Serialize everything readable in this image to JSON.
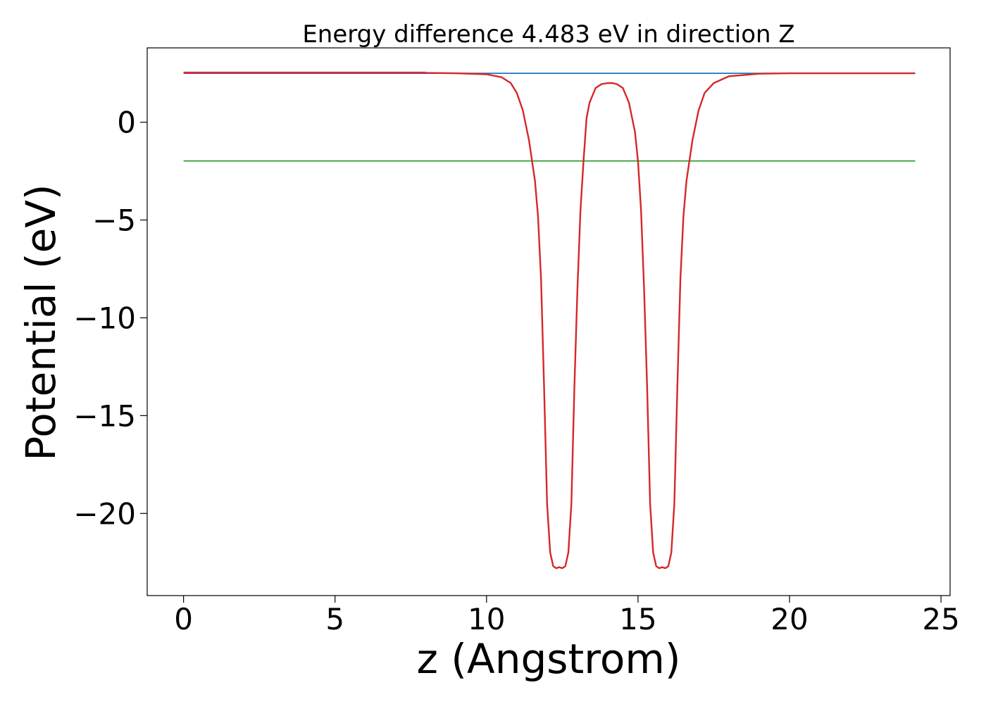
{
  "chart_data": {
    "type": "line",
    "title": "Energy difference 4.483 eV in direction Z",
    "xlabel": "z (Angstrom)",
    "ylabel": "Potential (eV)",
    "xlim": [
      -1.2,
      25.3
    ],
    "ylim": [
      -24.2,
      3.8
    ],
    "xticks": [
      0,
      5,
      10,
      15,
      20,
      25
    ],
    "yticks": [
      0,
      -5,
      -10,
      -15,
      -20
    ],
    "grid": false,
    "legend": "none",
    "series": [
      {
        "color": "#1f77b4",
        "x": [
          0,
          24.15
        ],
        "y": [
          2.5,
          2.5
        ]
      },
      {
        "color": "#2ca02c",
        "x": [
          0,
          24.15
        ],
        "y": [
          -1.98,
          -1.98
        ]
      },
      {
        "color": "#9467bd",
        "x": [
          0,
          8.0
        ],
        "y": [
          2.55,
          2.55
        ]
      },
      {
        "color": "#d62728",
        "x": [
          0,
          8.0,
          9.0,
          10.0,
          10.5,
          10.8,
          11.0,
          11.2,
          11.4,
          11.6,
          11.7,
          11.8,
          11.9,
          12.0,
          12.1,
          12.2,
          12.3,
          12.4,
          12.5,
          12.6,
          12.7,
          12.8,
          12.9,
          13.0,
          13.1,
          13.2,
          13.3,
          13.4,
          13.6,
          13.8,
          14.0,
          14.15,
          14.3,
          14.5,
          14.7,
          14.9,
          15.0,
          15.1,
          15.2,
          15.3,
          15.4,
          15.5,
          15.6,
          15.7,
          15.8,
          15.9,
          16.0,
          16.1,
          16.2,
          16.3,
          16.4,
          16.5,
          16.6,
          16.8,
          17.0,
          17.2,
          17.5,
          18.0,
          19.0,
          20.0,
          24.15
        ],
        "y": [
          2.52,
          2.52,
          2.5,
          2.45,
          2.3,
          2.0,
          1.5,
          0.6,
          -0.9,
          -3.0,
          -4.8,
          -8.0,
          -13.5,
          -19.5,
          -22.0,
          -22.7,
          -22.8,
          -22.75,
          -22.8,
          -22.7,
          -22.0,
          -19.5,
          -13.5,
          -8.5,
          -4.5,
          -2.0,
          0.2,
          1.0,
          1.75,
          1.95,
          2.0,
          2.0,
          1.95,
          1.75,
          1.0,
          -0.5,
          -2.0,
          -4.5,
          -8.5,
          -13.5,
          -19.5,
          -22.0,
          -22.7,
          -22.8,
          -22.75,
          -22.8,
          -22.7,
          -22.0,
          -19.5,
          -13.5,
          -8.0,
          -4.8,
          -3.0,
          -0.9,
          0.6,
          1.5,
          2.0,
          2.35,
          2.48,
          2.5,
          2.5
        ]
      }
    ]
  }
}
